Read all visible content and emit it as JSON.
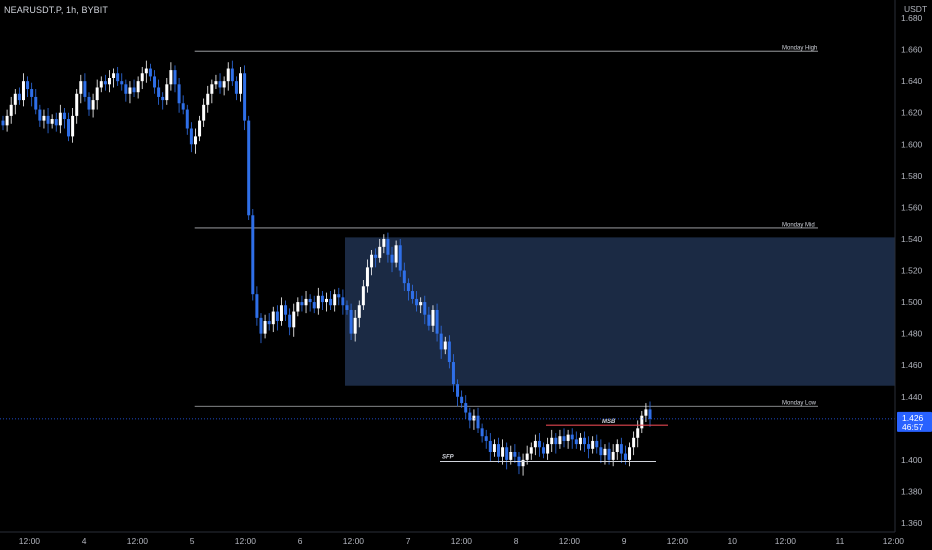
{
  "header": {
    "symbol_title": "NEARUSDT.P, 1h, BYBIT"
  },
  "chart_data": {
    "type": "candlestick",
    "symbol": "NEARUSDT.P",
    "interval": "1h",
    "exchange": "BYBIT",
    "currency": "USDT",
    "ylim": [
      1.355,
      1.685
    ],
    "y_ticks": [
      "1.680",
      "1.660",
      "1.640",
      "1.620",
      "1.600",
      "1.580",
      "1.560",
      "1.540",
      "1.520",
      "1.500",
      "1.480",
      "1.460",
      "1.440",
      "1.400",
      "1.380",
      "1.360"
    ],
    "x_ticks": [
      {
        "label": "12:00",
        "hour": 12
      },
      {
        "label": "4",
        "hour": 24
      },
      {
        "label": "12:00",
        "hour": 36
      },
      {
        "label": "5",
        "hour": 48
      },
      {
        "label": "12:00",
        "hour": 60
      },
      {
        "label": "6",
        "hour": 72
      },
      {
        "label": "12:00",
        "hour": 84
      },
      {
        "label": "7",
        "hour": 96
      },
      {
        "label": "12:00",
        "hour": 108
      },
      {
        "label": "8",
        "hour": 120
      },
      {
        "label": "12:00",
        "hour": 132
      },
      {
        "label": "9",
        "hour": 144
      },
      {
        "label": "12:00",
        "hour": 156
      },
      {
        "label": "10",
        "hour": 168
      },
      {
        "label": "12:00",
        "hour": 180
      },
      {
        "label": "11",
        "hour": 192
      },
      {
        "label": "12:00",
        "hour": 204
      }
    ],
    "candles_close": [
      1.612,
      1.618,
      1.625,
      1.632,
      1.628,
      1.64,
      1.635,
      1.63,
      1.622,
      1.615,
      1.618,
      1.613,
      1.616,
      1.612,
      1.62,
      1.616,
      1.605,
      1.618,
      1.632,
      1.64,
      1.63,
      1.622,
      1.628,
      1.636,
      1.64,
      1.638,
      1.642,
      1.645,
      1.64,
      1.638,
      1.632,
      1.636,
      1.633,
      1.64,
      1.645,
      1.648,
      1.643,
      1.636,
      1.63,
      1.628,
      1.638,
      1.647,
      1.638,
      1.626,
      1.622,
      1.61,
      1.6,
      1.605,
      1.615,
      1.625,
      1.632,
      1.638,
      1.64,
      1.636,
      1.64,
      1.648,
      1.64,
      1.632,
      1.645,
      1.615,
      1.555,
      1.505,
      1.49,
      1.48,
      1.488,
      1.486,
      1.494,
      1.488,
      1.498,
      1.492,
      1.484,
      1.494,
      1.5,
      1.498,
      1.502,
      1.5,
      1.496,
      1.504,
      1.5,
      1.502,
      1.498,
      1.505,
      1.503,
      1.498,
      1.495,
      1.48,
      1.49,
      1.498,
      1.51,
      1.522,
      1.53,
      1.528,
      1.535,
      1.54,
      1.53,
      1.525,
      1.536,
      1.52,
      1.512,
      1.507,
      1.502,
      1.498,
      1.5,
      1.492,
      1.485,
      1.495,
      1.48,
      1.47,
      1.475,
      1.462,
      1.448,
      1.44,
      1.436,
      1.43,
      1.425,
      1.428,
      1.42,
      1.415,
      1.412,
      1.405,
      1.41,
      1.402,
      1.408,
      1.4,
      1.405,
      1.402,
      1.396,
      1.4,
      1.404,
      1.408,
      1.412,
      1.408,
      1.404,
      1.41,
      1.414,
      1.41,
      1.415,
      1.412,
      1.416,
      1.413,
      1.41,
      1.414,
      1.41,
      1.407,
      1.412,
      1.408,
      1.403,
      1.407,
      1.4,
      1.405,
      1.41,
      1.404,
      1.4,
      1.408,
      1.414,
      1.42,
      1.428,
      1.432,
      1.426
    ],
    "first_candle_open": 1.615,
    "levels": [
      {
        "label": "Monday High",
        "price": 1.659
      },
      {
        "label": "Monday Mid",
        "price": 1.547
      },
      {
        "label": "Monday Low",
        "price": 1.434
      }
    ],
    "zone": {
      "price_top": 1.541,
      "price_bottom": 1.447
    },
    "annotations": [
      {
        "label": "MSB",
        "price": 1.422
      },
      {
        "label": "SFP",
        "price": 1.399
      }
    ],
    "current_price": {
      "value": "1.426",
      "countdown": "46:57"
    },
    "colors": {
      "bull": "#ffffff",
      "bear": "#2f6fe8",
      "zone": "#1b2a44",
      "level_line": "#cfd2d8",
      "msb_line": "#e0454f",
      "price_tag": "#2962ff",
      "grid": "none"
    },
    "grid": false
  }
}
